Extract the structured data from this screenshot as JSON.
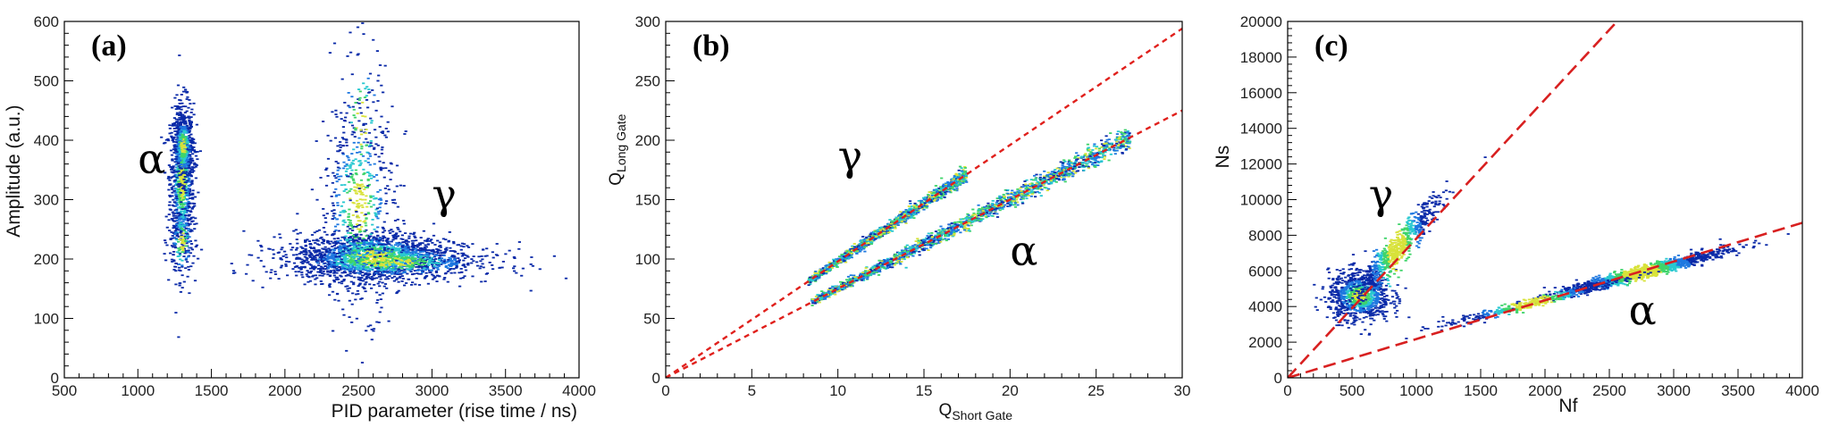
{
  "chart_data": [
    {
      "type": "scatter",
      "panel_label": "(a)",
      "xlabel": "PID parameter (rise time / ns)",
      "ylabel": "Amplitude (a.u.)",
      "xlim": [
        500,
        4000
      ],
      "ylim": [
        0,
        600
      ],
      "xticks": [
        "500",
        "1000",
        "1500",
        "2000",
        "2500",
        "3000",
        "3500",
        "4000"
      ],
      "yticks": [
        "0",
        "100",
        "200",
        "300",
        "400",
        "500",
        "600"
      ],
      "grid": false,
      "legend": "none",
      "colormap": [
        "#0a2aa8",
        "#1e78e0",
        "#28c8d0",
        "#3fd46a",
        "#d8e23a"
      ],
      "series": [
        {
          "name": "α",
          "clusters": [
            {
              "cx": 1300,
              "cy": 330,
              "sx": 40,
              "sy": 65,
              "n": 900
            },
            {
              "cx": 1310,
              "cy": 390,
              "sx": 35,
              "sy": 30,
              "n": 350
            },
            {
              "cx": 1300,
              "cy": 230,
              "sx": 45,
              "sy": 35,
              "n": 150
            }
          ],
          "label_at": {
            "x": 1000,
            "y": 345
          }
        },
        {
          "name": "γ",
          "clusters": [
            {
              "cx": 2600,
              "cy": 205,
              "sx": 260,
              "sy": 20,
              "n": 1500
            },
            {
              "cx": 2700,
              "cy": 195,
              "sx": 380,
              "sy": 16,
              "n": 700
            },
            {
              "cx": 2500,
              "cy": 290,
              "sx": 130,
              "sy": 90,
              "n": 550
            },
            {
              "cx": 2520,
              "cy": 430,
              "sx": 80,
              "sy": 80,
              "n": 90
            }
          ],
          "label_at": {
            "x": 3000,
            "y": 285
          }
        }
      ]
    },
    {
      "type": "scatter",
      "panel_label": "(b)",
      "xlabel": "Q",
      "xlabel_sub": "Short Gate",
      "ylabel": "Q",
      "ylabel_sub": "Long Gate",
      "xlim": [
        0,
        30
      ],
      "ylim": [
        0,
        300
      ],
      "xticks": [
        "0",
        "5",
        "10",
        "15",
        "20",
        "25",
        "30"
      ],
      "yticks": [
        "0",
        "50",
        "100",
        "150",
        "200",
        "250",
        "300"
      ],
      "grid": false,
      "legend": "none",
      "colormap": [
        "#0a2aa8",
        "#1e78e0",
        "#28c8d0",
        "#3fd46a",
        "#d8e23a"
      ],
      "series": [
        {
          "name": "γ",
          "fit_slope": 9.8,
          "x_range": [
            8.3,
            17.5
          ],
          "n": 1400,
          "label_at": {
            "x": 10,
            "y": 175
          }
        },
        {
          "name": "α",
          "fit_slope": 7.5,
          "x_range": [
            8.5,
            27
          ],
          "n": 1800,
          "label_at": {
            "x": 20,
            "y": 95
          }
        }
      ],
      "fit_lines": [
        {
          "x": [
            0,
            30
          ],
          "y": [
            0,
            294
          ],
          "style": "dashed",
          "color": "#e0201c"
        },
        {
          "x": [
            0,
            30
          ],
          "y": [
            0,
            225
          ],
          "style": "dashed",
          "color": "#e0201c"
        }
      ]
    },
    {
      "type": "scatter",
      "panel_label": "(c)",
      "xlabel": "Nf",
      "ylabel": "Ns",
      "xlim": [
        0,
        4000
      ],
      "ylim": [
        0,
        20000
      ],
      "xticks": [
        "0",
        "500",
        "1000",
        "1500",
        "2000",
        "2500",
        "3000",
        "3500",
        "4000"
      ],
      "yticks": [
        "0",
        "2000",
        "4000",
        "6000",
        "8000",
        "10000",
        "12000",
        "14000",
        "16000",
        "18000",
        "20000"
      ],
      "grid": false,
      "legend": "none",
      "colormap": [
        "#0a2aa8",
        "#1e78e0",
        "#28c8d0",
        "#3fd46a",
        "#d8e23a"
      ],
      "series": [
        {
          "name": "γ",
          "clusters": [
            {
              "cx": 560,
              "cy": 4600,
              "sx": 120,
              "sy": 700,
              "n": 900
            },
            {
              "cx": 850,
              "cy": 7200,
              "sx": 160,
              "sy": 1400,
              "n": 700,
              "along_slope": 8.2
            }
          ],
          "label_at": {
            "x": 630,
            "y": 9500
          }
        },
        {
          "name": "α",
          "clusters": [
            {
              "cx": 2750,
              "cy": 5900,
              "sx": 320,
              "sy": 500,
              "n": 1300,
              "along_slope": 1.85
            },
            {
              "cx": 1900,
              "cy": 4200,
              "sx": 350,
              "sy": 400,
              "n": 400,
              "along_slope": 1.85
            }
          ],
          "label_at": {
            "x": 2650,
            "y": 3000
          }
        }
      ],
      "fit_lines": [
        {
          "x": [
            0,
            2560
          ],
          "y": [
            0,
            20000
          ],
          "style": "dashed",
          "color": "#d82020"
        },
        {
          "x": [
            0,
            4000
          ],
          "y": [
            0,
            8700
          ],
          "style": "dashed",
          "color": "#d82020"
        }
      ]
    }
  ]
}
